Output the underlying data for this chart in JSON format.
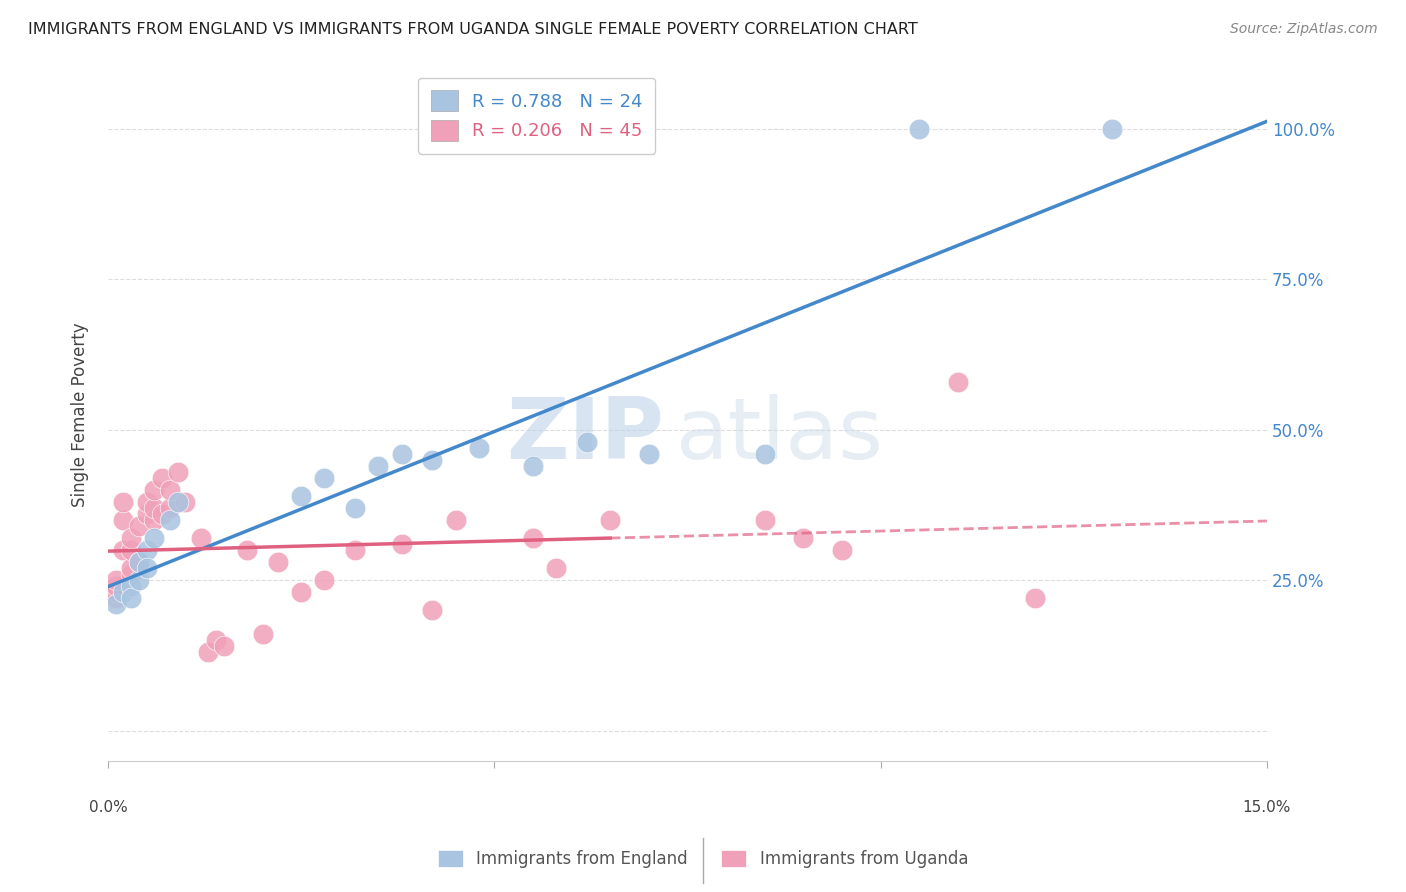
{
  "title": "IMMIGRANTS FROM ENGLAND VS IMMIGRANTS FROM UGANDA SINGLE FEMALE POVERTY CORRELATION CHART",
  "source": "Source: ZipAtlas.com",
  "ylabel": "Single Female Poverty",
  "yticks": [
    0.0,
    0.25,
    0.5,
    0.75,
    1.0
  ],
  "ytick_labels": [
    "",
    "25.0%",
    "50.0%",
    "75.0%",
    "100.0%"
  ],
  "xlim": [
    0.0,
    0.15
  ],
  "ylim": [
    -0.05,
    1.1
  ],
  "england_R": 0.788,
  "england_N": 24,
  "uganda_R": 0.206,
  "uganda_N": 45,
  "england_color": "#a8c4e0",
  "uganda_color": "#f0a0b8",
  "england_line_color": "#4488cc",
  "uganda_line_color": "#e06080",
  "watermark_zip": "ZIP",
  "watermark_atlas": "atlas",
  "england_scatter_x": [
    0.001,
    0.002,
    0.003,
    0.003,
    0.004,
    0.004,
    0.005,
    0.005,
    0.006,
    0.008,
    0.009,
    0.025,
    0.028,
    0.032,
    0.035,
    0.038,
    0.042,
    0.048,
    0.055,
    0.062,
    0.07,
    0.085,
    0.105,
    0.13
  ],
  "england_scatter_y": [
    0.21,
    0.23,
    0.24,
    0.22,
    0.25,
    0.28,
    0.3,
    0.27,
    0.32,
    0.35,
    0.38,
    0.39,
    0.42,
    0.37,
    0.44,
    0.46,
    0.45,
    0.47,
    0.44,
    0.48,
    0.46,
    0.46,
    1.0,
    1.0
  ],
  "uganda_scatter_x": [
    0.001,
    0.001,
    0.001,
    0.001,
    0.002,
    0.002,
    0.002,
    0.003,
    0.003,
    0.003,
    0.003,
    0.004,
    0.004,
    0.005,
    0.005,
    0.006,
    0.006,
    0.006,
    0.007,
    0.007,
    0.008,
    0.008,
    0.009,
    0.01,
    0.012,
    0.013,
    0.014,
    0.015,
    0.018,
    0.02,
    0.022,
    0.025,
    0.028,
    0.032,
    0.038,
    0.042,
    0.045,
    0.055,
    0.058,
    0.065,
    0.085,
    0.09,
    0.095,
    0.11,
    0.12
  ],
  "uganda_scatter_y": [
    0.22,
    0.23,
    0.24,
    0.25,
    0.3,
    0.35,
    0.38,
    0.26,
    0.27,
    0.3,
    0.32,
    0.28,
    0.34,
    0.36,
    0.38,
    0.35,
    0.37,
    0.4,
    0.36,
    0.42,
    0.37,
    0.4,
    0.43,
    0.38,
    0.32,
    0.13,
    0.15,
    0.14,
    0.3,
    0.16,
    0.28,
    0.23,
    0.25,
    0.3,
    0.31,
    0.2,
    0.35,
    0.32,
    0.27,
    0.35,
    0.35,
    0.32,
    0.3,
    0.58,
    0.22
  ],
  "background_color": "#ffffff",
  "grid_color": "#dddddd"
}
